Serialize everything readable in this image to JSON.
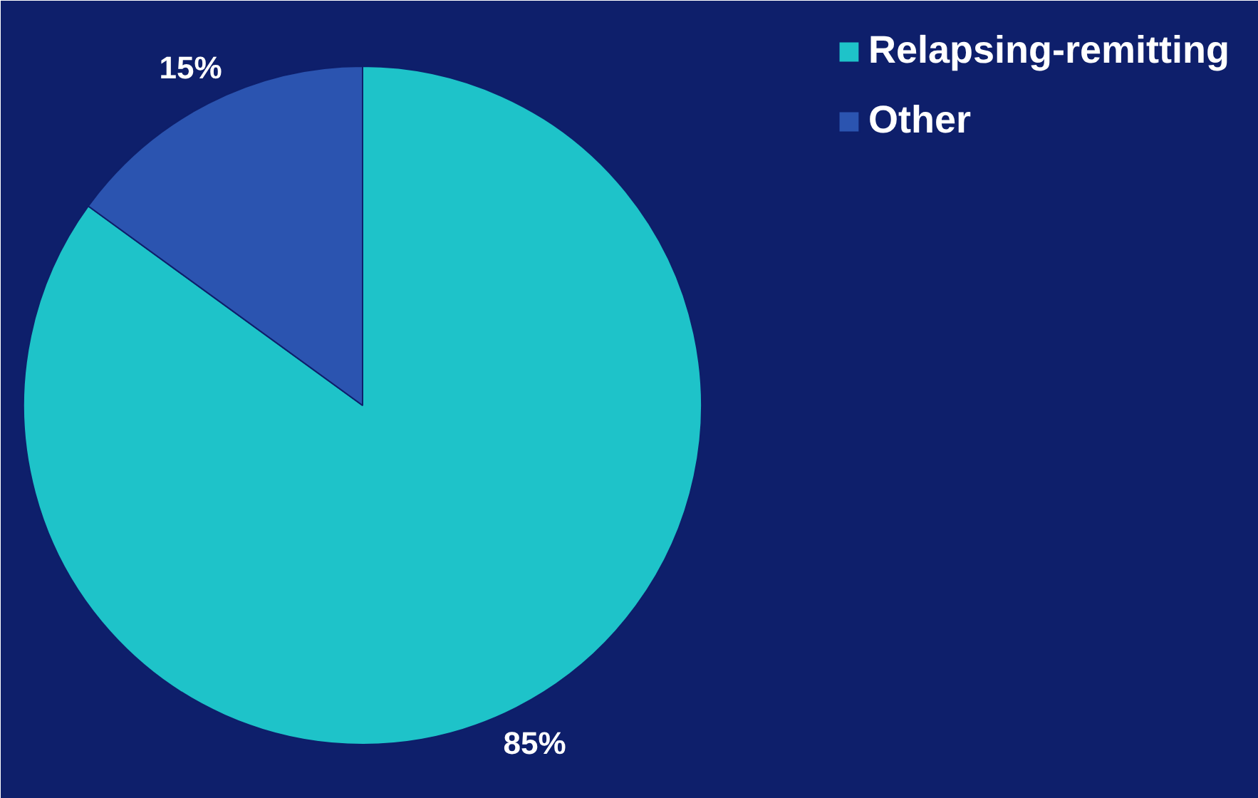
{
  "chart_data": {
    "type": "pie",
    "categories": [
      "Relapsing-remitting",
      "Other"
    ],
    "values": [
      85,
      15
    ],
    "colors": [
      "#1ec3c9",
      "#2b54b0"
    ],
    "value_labels": [
      "85%",
      "15%"
    ],
    "legend": "top right"
  }
}
